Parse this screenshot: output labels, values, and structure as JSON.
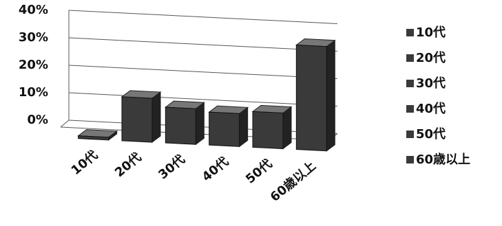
{
  "chart_data": {
    "type": "bar3d",
    "categories": [
      "10代",
      "20代",
      "30代",
      "40代",
      "50代",
      "60歳以上"
    ],
    "values": [
      1,
      16,
      13,
      12,
      13,
      38
    ],
    "color": "#3a3a3a",
    "ylim": [
      0,
      40
    ],
    "yticks": [
      {
        "value": 0,
        "label": "0%"
      },
      {
        "value": 10,
        "label": "10%"
      },
      {
        "value": 20,
        "label": "20%"
      },
      {
        "value": 30,
        "label": "30%"
      },
      {
        "value": 40,
        "label": "40%"
      }
    ],
    "grid": true,
    "legend": "right"
  }
}
